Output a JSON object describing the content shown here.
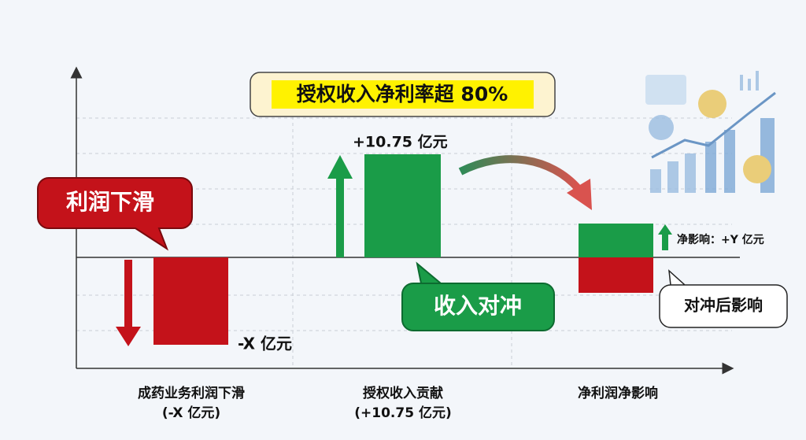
{
  "title": "授权收入净利率超 80%",
  "callouts": {
    "decline": "利润下滑",
    "offset": "收入对冲",
    "after": "对冲后影响"
  },
  "columns": [
    {
      "value_label": "-X 亿元",
      "category": "成药业务利润下滑",
      "sub": "(-X 亿元)"
    },
    {
      "value_label": "+10.75 亿元",
      "category": "授权收入贡献",
      "sub": "(+10.75 亿元)"
    },
    {
      "value_label": "净影响：+Y 亿元",
      "category": "净利润净影响"
    }
  ]
}
